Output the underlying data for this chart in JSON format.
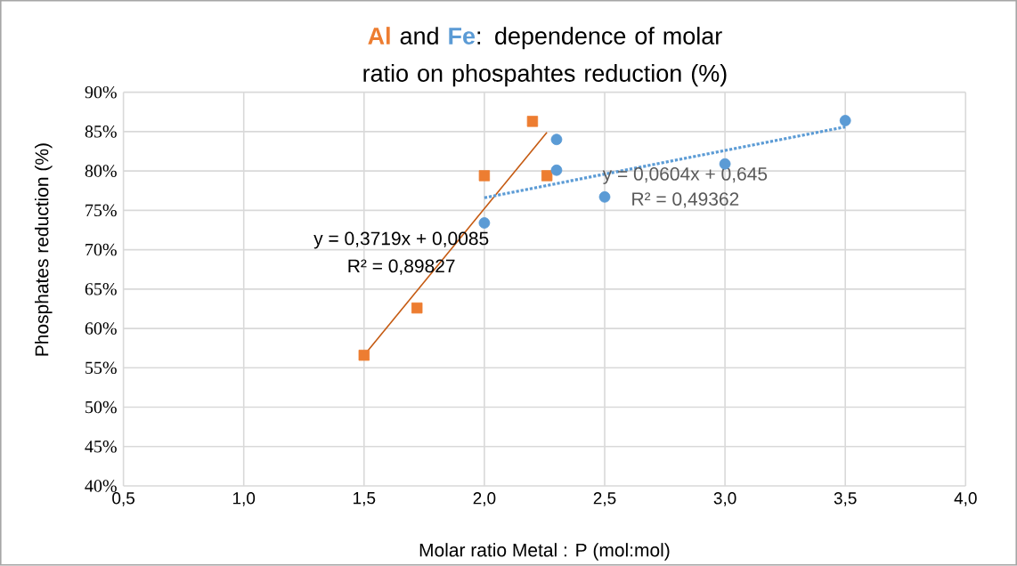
{
  "chart_data": {
    "type": "scatter",
    "title": "**Al** and **Fe**: dependence of molar ratio on phospahtes reduction (%)",
    "xlabel": "Molar ratio Metal : P (mol:mol)",
    "ylabel": "Phosphates reduction (%)",
    "series": [
      {
        "color": "#ed7d31",
        "marker": "square",
        "x": [
          1.5,
          1.72,
          2.0,
          2.2,
          2.26
        ],
        "values": [
          56.6,
          62.6,
          79.4,
          86.3,
          79.4
        ]
      },
      {
        "color": "#5b9bd5",
        "marker": "circle",
        "x": [
          2.0,
          2.3,
          2.3,
          2.5,
          3.0,
          3.5
        ],
        "values": [
          73.4,
          84.0,
          80.1,
          76.7,
          80.9,
          86.4
        ]
      },
      {
        "type": "line",
        "color": "#c55a11",
        "marker": "none",
        "line_style": "solid",
        "x": [
          1.5,
          2.26
        ],
        "values": [
          56.6,
          84.9
        ]
      },
      {
        "type": "line",
        "color": "#5b9bd5",
        "marker": "none",
        "line_style": "dotted",
        "x": [
          2.0,
          3.5
        ],
        "values": [
          76.6,
          85.6
        ]
      }
    ],
    "annotations": [
      "y = 0,3719x + 0,0085",
      "R² = 0,89827",
      "y = 0,0604x + 0,645",
      "R² = 0,49362"
    ],
    "xlim": [
      0.5,
      4.0
    ],
    "ylim": [
      40,
      90
    ],
    "xticks": [
      {
        "value": 0.5,
        "label": "0,5"
      },
      {
        "value": 1.0,
        "label": "1,0"
      },
      {
        "value": 1.5,
        "label": "1,5"
      },
      {
        "value": 2.0,
        "label": "2,0"
      },
      {
        "value": 2.5,
        "label": "2,5"
      },
      {
        "value": 3.0,
        "label": "3,0"
      },
      {
        "value": 3.5,
        "label": "3,5"
      },
      {
        "value": 4.0,
        "label": "4,0"
      }
    ],
    "yticks": [
      {
        "value": 40,
        "label": "40%"
      },
      {
        "value": 45,
        "label": "45%"
      },
      {
        "value": 50,
        "label": "50%"
      },
      {
        "value": 55,
        "label": "55%"
      },
      {
        "value": 60,
        "label": "60%"
      },
      {
        "value": 65,
        "label": "65%"
      },
      {
        "value": 70,
        "label": "70%"
      },
      {
        "value": 75,
        "label": "75%"
      },
      {
        "value": 80,
        "label": "80%"
      },
      {
        "value": 85,
        "label": "85%"
      },
      {
        "value": 90,
        "label": "90%"
      }
    ],
    "grid": true
  }
}
